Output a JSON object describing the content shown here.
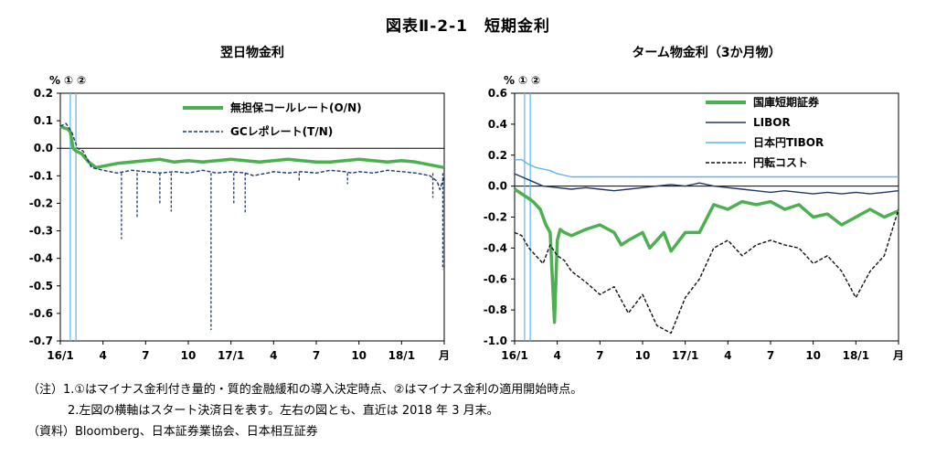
{
  "figure": {
    "title": "図表Ⅱ-2-1　短期金利"
  },
  "chart_data": [
    {
      "type": "line",
      "title": "翌日物金利",
      "unit_label": "%",
      "marker_labels": [
        "①",
        "②"
      ],
      "ylim": [
        -0.7,
        0.2
      ],
      "yticks": [
        "0.2",
        "0.1",
        "0.0",
        "-0.1",
        "-0.2",
        "-0.3",
        "-0.4",
        "-0.5",
        "-0.6",
        "-0.7"
      ],
      "xticks": [
        "16/1",
        "4",
        "7",
        "10",
        "17/1",
        "4",
        "7",
        "10",
        "18/1",
        "月"
      ],
      "series": [
        {
          "name": "無担保コールレート(O/N)",
          "color": "#4caf50",
          "style": "solid",
          "x": [
            0,
            0.2,
            0.5,
            0.7,
            0.9,
            1.1,
            1.5,
            2.0,
            2.5,
            3,
            4,
            5,
            6,
            7,
            8,
            9,
            10,
            11,
            12,
            13,
            14,
            15,
            16,
            17,
            18,
            19,
            20,
            21,
            22,
            23,
            24,
            25,
            26,
            27
          ],
          "y": [
            0.08,
            0.075,
            0.07,
            0.06,
            0.0,
            -0.01,
            -0.02,
            -0.05,
            -0.07,
            -0.065,
            -0.055,
            -0.05,
            -0.045,
            -0.04,
            -0.05,
            -0.045,
            -0.05,
            -0.045,
            -0.04,
            -0.045,
            -0.05,
            -0.045,
            -0.04,
            -0.045,
            -0.05,
            -0.05,
            -0.045,
            -0.04,
            -0.045,
            -0.05,
            -0.045,
            -0.05,
            -0.06,
            -0.07
          ]
        },
        {
          "name": "GCレポレート(T/N)",
          "color": "#1f3864",
          "style": "dashed",
          "x": [
            0,
            0.4,
            0.8,
            1.2,
            1.6,
            2.2,
            3,
            4,
            5,
            6,
            7,
            8,
            9,
            10,
            11,
            12,
            13,
            13.6,
            14,
            14.6,
            15,
            16,
            17,
            18,
            19,
            20,
            20.5,
            21,
            22,
            23,
            24,
            25,
            26,
            26.5,
            26.7,
            27
          ],
          "y": [
            0.08,
            0.09,
            0.06,
            0.0,
            -0.01,
            -0.07,
            -0.08,
            -0.09,
            -0.08,
            -0.085,
            -0.09,
            -0.085,
            -0.09,
            -0.08,
            -0.09,
            -0.085,
            -0.09,
            -0.1,
            -0.095,
            -0.09,
            -0.085,
            -0.09,
            -0.085,
            -0.09,
            -0.08,
            -0.085,
            -0.09,
            -0.085,
            -0.09,
            -0.08,
            -0.085,
            -0.09,
            -0.1,
            -0.12,
            -0.15,
            -0.1
          ]
        },
        {
          "name": "GC spikes",
          "hidden_legend": true,
          "spikes": [
            [
              4.3,
              -0.33
            ],
            [
              5.4,
              -0.25
            ],
            [
              7.0,
              -0.2
            ],
            [
              7.8,
              -0.23
            ],
            [
              10.6,
              -0.66
            ],
            [
              12.2,
              -0.2
            ],
            [
              13.0,
              -0.24
            ],
            [
              16.8,
              -0.12
            ],
            [
              20.2,
              -0.13
            ],
            [
              26.2,
              -0.18
            ],
            [
              26.9,
              -0.44
            ]
          ]
        }
      ],
      "markers_x": [
        0.7,
        1.1
      ],
      "x_range": [
        0,
        27
      ]
    },
    {
      "type": "line",
      "title": "ターム物金利（3か月物）",
      "unit_label": "%",
      "marker_labels": [
        "①",
        "②"
      ],
      "ylim": [
        -1.0,
        0.6
      ],
      "yticks": [
        "0.6",
        "0.4",
        "0.2",
        "0.0",
        "-0.2",
        "-0.4",
        "-0.6",
        "-0.8",
        "-1.0"
      ],
      "xticks": [
        "16/1",
        "4",
        "7",
        "10",
        "17/1",
        "4",
        "7",
        "10",
        "18/1",
        "月"
      ],
      "series": [
        {
          "name": "国庫短期証券",
          "color": "#4caf50",
          "style": "solid",
          "x": [
            0,
            0.5,
            1,
            1.3,
            1.8,
            2,
            2.2,
            2.5,
            2.8,
            3,
            3.2,
            3.5,
            4,
            5,
            6,
            7,
            7.5,
            8,
            9,
            9.5,
            10,
            10.5,
            11,
            12,
            13,
            14,
            15,
            16,
            17,
            18,
            19,
            20,
            21,
            22,
            23,
            24,
            25,
            26,
            27
          ],
          "y": [
            -0.02,
            -0.05,
            -0.08,
            -0.1,
            -0.15,
            -0.2,
            -0.25,
            -0.3,
            -0.88,
            -0.35,
            -0.28,
            -0.3,
            -0.32,
            -0.28,
            -0.25,
            -0.3,
            -0.38,
            -0.35,
            -0.3,
            -0.4,
            -0.35,
            -0.3,
            -0.42,
            -0.3,
            -0.3,
            -0.12,
            -0.15,
            -0.1,
            -0.12,
            -0.1,
            -0.15,
            -0.12,
            -0.2,
            -0.18,
            -0.25,
            -0.2,
            -0.15,
            -0.2,
            -0.16
          ]
        },
        {
          "name": "LIBOR",
          "color": "#1f3864",
          "style": "solid",
          "x": [
            0,
            0.5,
            1,
            1.5,
            2,
            3,
            4,
            5,
            6,
            7,
            8,
            9,
            10,
            11,
            12,
            13,
            14,
            15,
            16,
            17,
            18,
            19,
            20,
            21,
            22,
            23,
            24,
            25,
            26,
            27
          ],
          "y": [
            0.08,
            0.06,
            0.04,
            0.02,
            0.0,
            -0.01,
            -0.02,
            -0.01,
            -0.02,
            -0.03,
            -0.02,
            -0.01,
            0.0,
            0.01,
            0.0,
            0.02,
            0.0,
            -0.01,
            -0.02,
            -0.03,
            -0.04,
            -0.03,
            -0.04,
            -0.05,
            -0.04,
            -0.05,
            -0.04,
            -0.05,
            -0.04,
            -0.03
          ]
        },
        {
          "name": "日本円TIBOR",
          "color": "#5bb5e8",
          "style": "solid",
          "x": [
            0,
            0.5,
            1,
            1.5,
            2,
            2.5,
            3,
            4,
            27
          ],
          "y": [
            0.17,
            0.17,
            0.14,
            0.12,
            0.11,
            0.1,
            0.08,
            0.06,
            0.06
          ]
        },
        {
          "name": "円転コスト",
          "color": "#111111",
          "style": "dashed",
          "x": [
            0,
            0.5,
            1,
            1.5,
            2,
            2.5,
            3,
            3.5,
            4,
            5,
            6,
            7,
            8,
            9,
            10,
            11,
            12,
            13,
            14,
            15,
            16,
            17,
            18,
            19,
            20,
            21,
            22,
            23,
            24,
            25,
            26,
            26.5,
            27
          ],
          "y": [
            -0.3,
            -0.32,
            -0.4,
            -0.45,
            -0.5,
            -0.38,
            -0.45,
            -0.48,
            -0.55,
            -0.62,
            -0.7,
            -0.65,
            -0.82,
            -0.7,
            -0.9,
            -0.95,
            -0.72,
            -0.6,
            -0.4,
            -0.35,
            -0.45,
            -0.38,
            -0.35,
            -0.38,
            -0.4,
            -0.5,
            -0.45,
            -0.55,
            -0.72,
            -0.55,
            -0.45,
            -0.3,
            -0.15
          ]
        }
      ],
      "markers_x": [
        0.7,
        1.1
      ],
      "x_range": [
        0,
        27
      ]
    }
  ],
  "notes": {
    "line1": "（注）1.①はマイナス金利付き量的・質的金融緩和の導入決定時点、②はマイナス金利の適用開始時点。",
    "line2": "2.左図の横軸はスタート決済日を表す。左右の図とも、直近は 2018 年 3 月末。",
    "line3": "（資料）Bloomberg、日本証券業協会、日本相互証券"
  }
}
